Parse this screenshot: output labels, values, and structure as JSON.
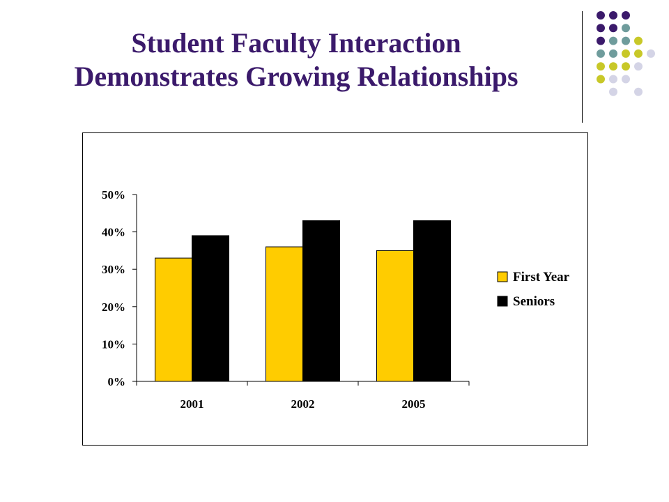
{
  "slide": {
    "title_line1": "Student Faculty Interaction",
    "title_line2": "Demonstrates Growing Relationships"
  },
  "decoration": {
    "dot_colors": {
      "purple": "#3b1a6b",
      "teal": "#6f9c9c",
      "olive": "#c8c828",
      "lavender": "#d4d4e6"
    }
  },
  "chart_data": {
    "type": "bar",
    "categories": [
      "2001",
      "2002",
      "2005"
    ],
    "series": [
      {
        "name": "First Year",
        "values": [
          33,
          36,
          35
        ],
        "color": "#ffcc00"
      },
      {
        "name": "Seniors",
        "values": [
          39,
          43,
          43
        ],
        "color": "#000000"
      }
    ],
    "ylim": [
      0,
      50
    ],
    "yticks": [
      "0%",
      "10%",
      "20%",
      "30%",
      "40%",
      "50%"
    ],
    "ytick_values": [
      0,
      10,
      20,
      30,
      40,
      50
    ],
    "value_format": "percent",
    "legend_position": "right",
    "grid": false,
    "title": "",
    "xlabel": "",
    "ylabel": ""
  }
}
